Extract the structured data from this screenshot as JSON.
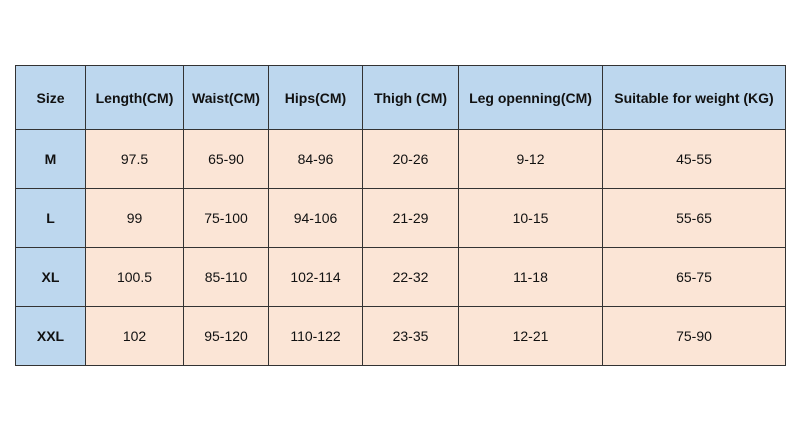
{
  "table": {
    "header": [
      "Size",
      "Length(CM)",
      "Waist(CM)",
      "Hips(CM)",
      "Thigh (CM)",
      "Leg openning(CM)",
      "Suitable for weight (KG)"
    ],
    "rows": [
      [
        "M",
        "97.5",
        "65-90",
        "84-96",
        "20-26",
        "9-12",
        "45-55"
      ],
      [
        "L",
        "99",
        "75-100",
        "94-106",
        "21-29",
        "10-15",
        "55-65"
      ],
      [
        "XL",
        "100.5",
        "85-110",
        "102-114",
        "22-32",
        "11-18",
        "65-75"
      ],
      [
        "XXL",
        "102",
        "95-120",
        "110-122",
        "23-35",
        "12-21",
        "75-90"
      ]
    ]
  }
}
